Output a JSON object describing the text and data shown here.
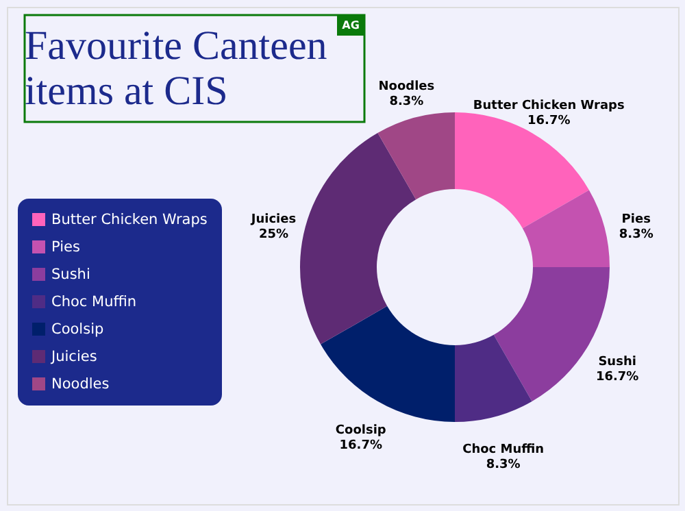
{
  "chart_data": {
    "type": "donut",
    "title": "Favourite Canteen items at CIS",
    "annotations": [
      "AG"
    ],
    "categories": [
      "Butter Chicken Wraps",
      "Pies",
      "Sushi",
      "Choc Muffin",
      "Coolsip",
      "Juicies",
      "Noodles"
    ],
    "values": [
      16.7,
      8.3,
      16.7,
      8.3,
      16.7,
      25,
      8.3
    ],
    "value_labels": [
      "16.7%",
      "8.3%",
      "16.7%",
      "8.3%",
      "16.7%",
      "25%",
      "8.3%"
    ],
    "colors": [
      "#ff63bb",
      "#c452b0",
      "#8c3d9e",
      "#4f2c85",
      "#001f6b",
      "#5e2b74",
      "#a04786"
    ],
    "legend": "left"
  }
}
